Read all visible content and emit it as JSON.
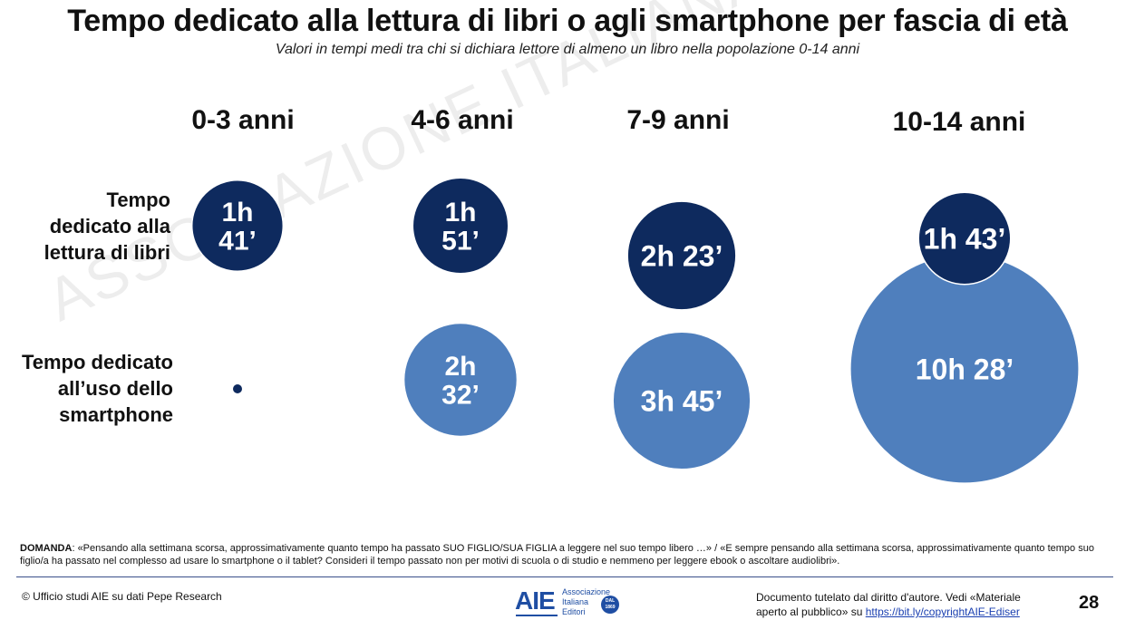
{
  "title": "Tempo dedicato alla lettura di libri o agli smartphone per fascia di età",
  "subtitle": "Valori in tempi medi tra chi si dichiara lettore di almeno un libro nella popolazione 0-14 anni",
  "watermark": "ASSOCIAZIONE ITALIANA EDITORI",
  "row_labels": {
    "reading": [
      "Tempo",
      "dedicato alla",
      "lettura di libri"
    ],
    "smartphone": [
      "Tempo dedicato",
      "all’uso dello",
      "smartphone"
    ]
  },
  "colors": {
    "reading": "#0e2a5e",
    "smartphone": "#4f7fbd"
  },
  "chart_data": {
    "type": "bubble",
    "title": "Tempo dedicato alla lettura di libri o agli smartphone per fascia di età",
    "categories": [
      "0-3 anni",
      "4-6 anni",
      "7-9 anni",
      "10-14 anni"
    ],
    "series": [
      {
        "name": "Tempo dedicato alla lettura di libri",
        "labels": [
          [
            "1h",
            "41’"
          ],
          [
            "1h",
            "51’"
          ],
          [
            "2h 23’"
          ],
          [
            "1h 43’"
          ]
        ],
        "values_minutes": [
          101,
          111,
          143,
          103
        ]
      },
      {
        "name": "Tempo dedicato all’uso dello smartphone",
        "labels": [
          [],
          [
            "2h",
            "32’"
          ],
          [
            "3h 45’"
          ],
          [
            "10h 28’"
          ]
        ],
        "values_minutes": [
          null,
          152,
          225,
          628
        ]
      }
    ]
  },
  "footer": {
    "question_label": "DOMANDA",
    "question_text": ": «Pensando alla settimana scorsa, approssimativamente quanto tempo ha passato SUO FIGLIO/SUA FIGLIA a leggere nel suo tempo libero …» / «E sempre pensando alla settimana scorsa, approssimativamente quanto tempo suo figlio/a ha passato nel complesso ad usare lo smartphone o il tablet?  Consideri il tempo passato non per motivi di scuola o di studio e nemmeno per leggere ebook o ascoltare audiolibri».",
    "source": "© Ufficio studi AIE su dati Pepe Research",
    "logo_mark": "AIE",
    "logo_words": [
      "Associazione",
      "Italiana",
      "Editori"
    ],
    "logo_seal": [
      "DAL",
      "1869"
    ],
    "copyright_line1": "Documento tutelato dal diritto d'autore. Vedi «Materiale",
    "copyright_line2_prefix": "aperto al pubblico» su ",
    "copyright_link": "https://bit.ly/copyrightAIE-Ediser",
    "page_number": "28"
  }
}
